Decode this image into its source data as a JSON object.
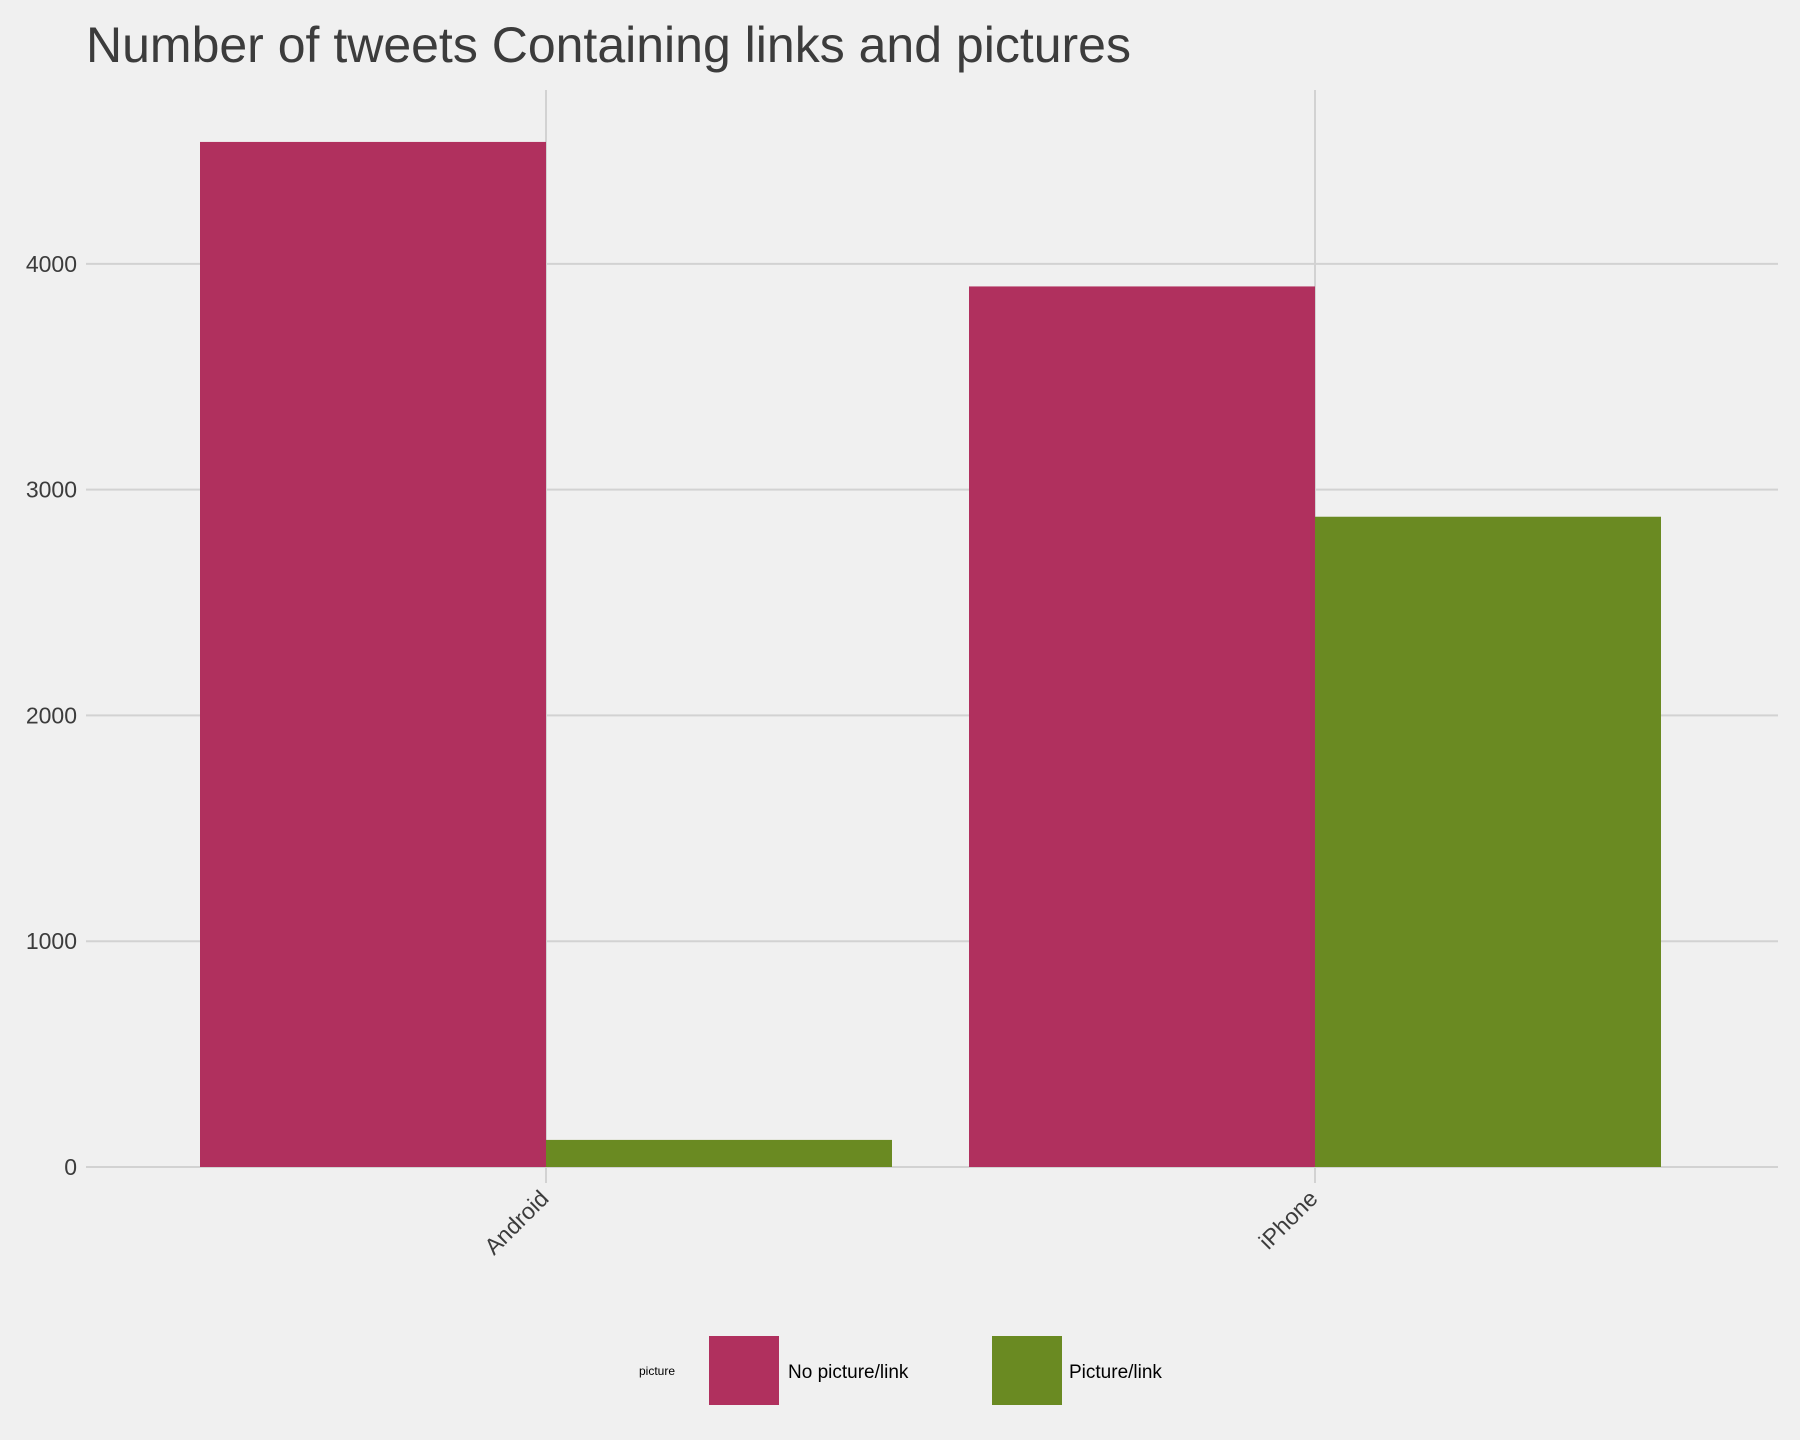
{
  "chart_data": {
    "type": "bar",
    "title": "Number of tweets Containing links and pictures",
    "xlabel": "",
    "ylabel": "",
    "categories": [
      "Android",
      "iPhone"
    ],
    "series": [
      {
        "name": "No picture/link",
        "color": "#b0305e",
        "values": [
          4540,
          3900
        ]
      },
      {
        "name": "Picture/link",
        "color": "#6a8a22",
        "values": [
          120,
          2880
        ]
      }
    ],
    "yticks": [
      0,
      1000,
      2000,
      3000,
      4000
    ],
    "ylim": [
      0,
      4770
    ],
    "grid": true,
    "legend": {
      "title": "picture",
      "position": "bottom"
    },
    "x_tick_rotation": "45 degrees"
  }
}
